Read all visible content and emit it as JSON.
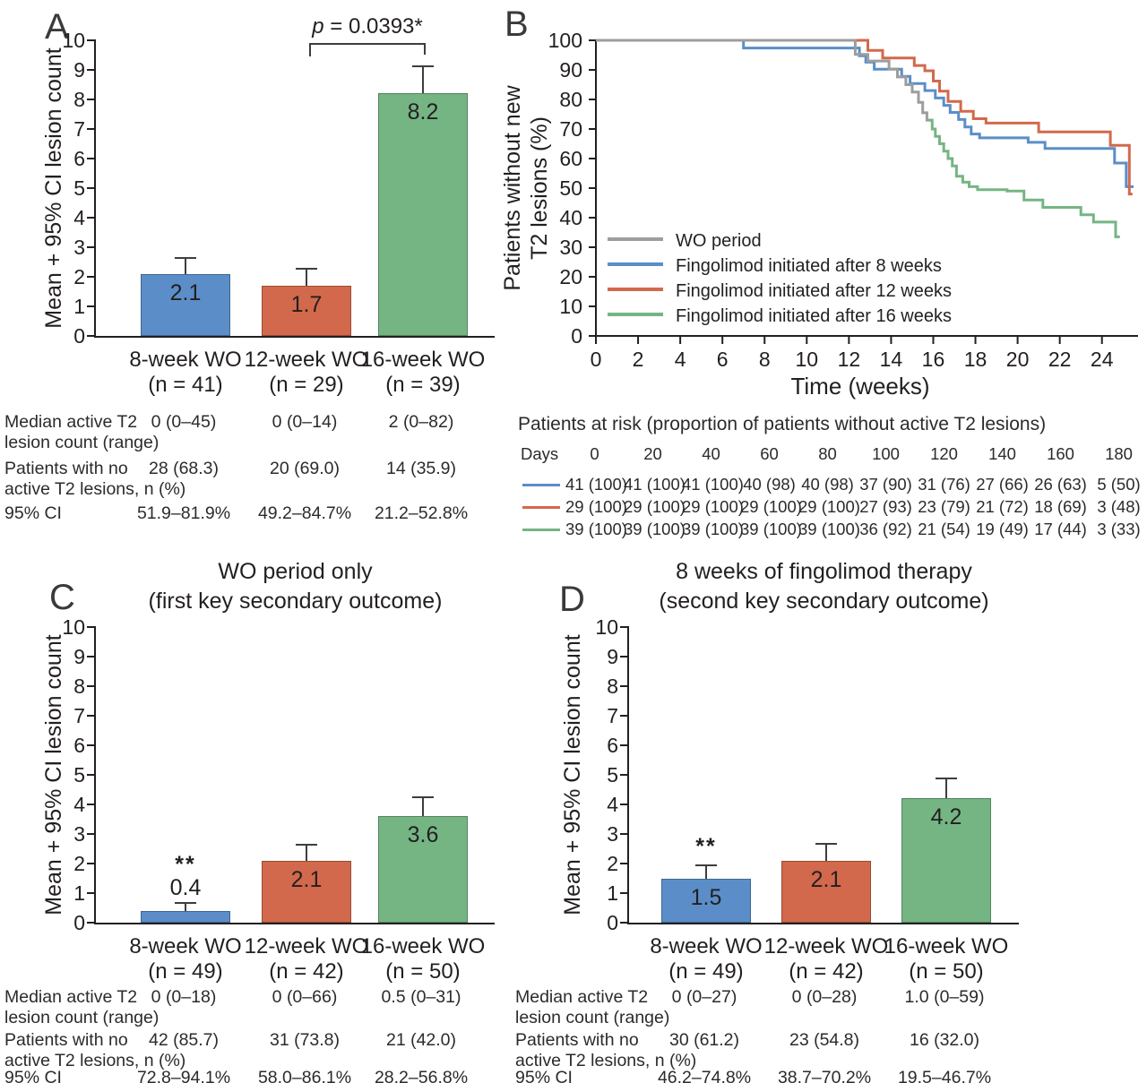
{
  "palette": {
    "blue": "#5b8ec8",
    "red": "#d2694c",
    "green": "#75b584",
    "gray": "#9c9e9d",
    "axis": "#231f20"
  },
  "chart_data": [
    {
      "id": "A",
      "type": "bar",
      "ylabel": "Mean + 95% CI lesion count",
      "ylim": [
        0,
        10
      ],
      "categories": [
        [
          "8-week WO",
          "(n = 41)"
        ],
        [
          "12-week WO",
          "(n = 29)"
        ],
        [
          "16-week WO",
          "(n = 39)"
        ]
      ],
      "values": [
        2.1,
        1.7,
        8.2
      ],
      "value_labels": [
        "2.1",
        "1.7",
        "8.2"
      ],
      "err_top": [
        2.6,
        2.25,
        9.1
      ],
      "bar_colors": [
        "blue",
        "red",
        "green"
      ],
      "sig": [
        "",
        "",
        ""
      ],
      "label_pos": [
        "in",
        "in",
        "in"
      ],
      "bracket": {
        "from": 1,
        "to": 2,
        "text_italic": "p",
        "text_rest": " = 0.0393*"
      },
      "stats_table": {
        "rows": [
          {
            "label": [
              "Median active T2",
              "lesion count (range)"
            ],
            "values": [
              "0 (0–45)",
              "0 (0–14)",
              "2 (0–82)"
            ]
          },
          {
            "label": [
              "Patients with no",
              "active T2 lesions, n (%)"
            ],
            "values": [
              "28 (68.3)",
              "20 (69.0)",
              "14 (35.9)"
            ]
          },
          {
            "label": [
              "95% CI"
            ],
            "values": [
              "51.9–81.9%",
              "49.2–84.7%",
              "21.2–52.8%"
            ]
          }
        ]
      }
    },
    {
      "id": "B",
      "type": "line",
      "subtype": "kaplan-meier",
      "ylabel_lines": [
        "Patients without new",
        "T2 lesions (%)"
      ],
      "xlabel": "Time (weeks)",
      "ylim": [
        0,
        100
      ],
      "xlim": [
        0,
        25.6
      ],
      "yticks": [
        0,
        10,
        20,
        30,
        40,
        50,
        60,
        70,
        80,
        90,
        100
      ],
      "xticks": [
        0,
        2,
        4,
        6,
        8,
        10,
        12,
        14,
        16,
        18,
        20,
        22,
        24
      ],
      "legend_position": "lower-left",
      "series": [
        {
          "name": "WO period",
          "color": "gray",
          "end": 15.95,
          "steps": [
            [
              0,
              100
            ],
            [
              12.3,
              95.2
            ],
            [
              12.9,
              93
            ],
            [
              13.9,
              90.3
            ],
            [
              14.3,
              87.6
            ],
            [
              14.7,
              85
            ],
            [
              15.0,
              82.5
            ],
            [
              15.3,
              79
            ],
            [
              15.5,
              75.5
            ],
            [
              15.7,
              73
            ]
          ]
        },
        {
          "name": "Fingolimod initiated after 8 weeks",
          "color": "blue",
          "end": 25.5,
          "steps": [
            [
              0,
              100
            ],
            [
              7,
              97.4
            ],
            [
              12.5,
              94.8
            ],
            [
              12.8,
              92.6
            ],
            [
              13.2,
              90.2
            ],
            [
              14.5,
              87.8
            ],
            [
              14.9,
              85.4
            ],
            [
              15.6,
              83
            ],
            [
              16.1,
              80.5
            ],
            [
              16.5,
              78
            ],
            [
              16.8,
              75.6
            ],
            [
              17.2,
              73.2
            ],
            [
              17.5,
              70.7
            ],
            [
              17.8,
              68.3
            ],
            [
              18.2,
              67
            ],
            [
              20.5,
              65.5
            ],
            [
              21.3,
              63.4
            ],
            [
              24.6,
              58.5
            ],
            [
              25.15,
              50.5
            ]
          ]
        },
        {
          "name": "Fingolimod initiated after 12 weeks",
          "color": "red",
          "end": 25.45,
          "steps": [
            [
              0,
              100
            ],
            [
              12.9,
              96.6
            ],
            [
              13.6,
              94
            ],
            [
              15.1,
              91.5
            ],
            [
              15.6,
              89.7
            ],
            [
              16.0,
              86.2
            ],
            [
              16.3,
              82.8
            ],
            [
              16.7,
              79.3
            ],
            [
              17.3,
              76
            ],
            [
              17.9,
              73.5
            ],
            [
              18.5,
              72
            ],
            [
              21.0,
              69
            ],
            [
              24.4,
              64.5
            ],
            [
              25.3,
              48
            ]
          ]
        },
        {
          "name": "Fingolimod initiated after 16 weeks",
          "color": "green",
          "end": 24.85,
          "steps": [
            [
              15.8,
              73
            ],
            [
              15.95,
              70
            ],
            [
              16.1,
              67.5
            ],
            [
              16.3,
              65
            ],
            [
              16.5,
              62.5
            ],
            [
              16.7,
              60
            ],
            [
              16.9,
              57.5
            ],
            [
              17.1,
              54
            ],
            [
              17.4,
              52
            ],
            [
              17.7,
              50.5
            ],
            [
              18.1,
              49.5
            ],
            [
              19.5,
              49
            ],
            [
              20.3,
              46
            ],
            [
              21.2,
              43.5
            ],
            [
              23.0,
              41
            ],
            [
              23.6,
              38.5
            ],
            [
              24.65,
              33.5
            ]
          ]
        }
      ],
      "at_risk": {
        "title": "Patients at risk (proportion of patients without active T2 lesions)",
        "days_label": "Days",
        "days": [
          "0",
          "20",
          "40",
          "60",
          "80",
          "100",
          "120",
          "140",
          "160",
          "180"
        ],
        "rows": [
          {
            "color": "blue",
            "values": [
              "41 (100)",
              "41 (100)",
              "41 (100)",
              "40 (98)",
              "40 (98)",
              "37 (90)",
              "31 (76)",
              "27 (66)",
              "26 (63)",
              "5 (50)"
            ]
          },
          {
            "color": "red",
            "values": [
              "29 (100)",
              "29 (100)",
              "29 (100)",
              "29 (100)",
              "29 (100)",
              "27 (93)",
              "23 (79)",
              "21 (72)",
              "18 (69)",
              "3 (48)"
            ]
          },
          {
            "color": "green",
            "values": [
              "39 (100)",
              "39 (100)",
              "39 (100)",
              "39 (100)",
              "39 (100)",
              "36 (92)",
              "21 (54)",
              "19 (49)",
              "17 (44)",
              "3 (33)"
            ]
          }
        ]
      }
    },
    {
      "id": "C",
      "type": "bar",
      "title_lines": [
        "WO period only",
        "(first key secondary outcome)"
      ],
      "ylabel": "Mean + 95% CI lesion count",
      "ylim": [
        0,
        10
      ],
      "categories": [
        [
          "8-week WO",
          "(n = 49)"
        ],
        [
          "12-week WO",
          "(n = 42)"
        ],
        [
          "16-week WO",
          "(n = 50)"
        ]
      ],
      "values": [
        0.4,
        2.1,
        3.6
      ],
      "value_labels": [
        "0.4",
        "2.1",
        "3.6"
      ],
      "err_top": [
        0.65,
        2.6,
        4.2
      ],
      "bar_colors": [
        "blue",
        "red",
        "green"
      ],
      "sig": [
        "**",
        "",
        ""
      ],
      "label_pos": [
        "above",
        "in",
        "in"
      ],
      "stats_table": {
        "rows": [
          {
            "label": [
              "Median active T2",
              "lesion count (range)"
            ],
            "values": [
              "0 (0–18)",
              "0 (0–66)",
              "0.5 (0–31)"
            ]
          },
          {
            "label": [
              "Patients with no",
              "active T2 lesions, n (%)"
            ],
            "values": [
              "42 (85.7)",
              "31 (73.8)",
              "21 (42.0)"
            ]
          },
          {
            "label": [
              "95% CI"
            ],
            "values": [
              "72.8–94.1%",
              "58.0–86.1%",
              "28.2–56.8%"
            ]
          }
        ]
      }
    },
    {
      "id": "D",
      "type": "bar",
      "title_lines": [
        "8 weeks of fingolimod therapy",
        "(second key secondary outcome)"
      ],
      "ylabel": "Mean + 95% CI lesion count",
      "ylim": [
        0,
        10
      ],
      "categories": [
        [
          "8-week WO",
          "(n = 49)"
        ],
        [
          "12-week WO",
          "(n = 42)"
        ],
        [
          "16-week WO",
          "(n = 50)"
        ]
      ],
      "values": [
        1.5,
        2.1,
        4.2
      ],
      "value_labels": [
        "1.5",
        "2.1",
        "4.2"
      ],
      "err_top": [
        1.9,
        2.65,
        4.85
      ],
      "bar_colors": [
        "blue",
        "red",
        "green"
      ],
      "sig": [
        "**",
        "",
        ""
      ],
      "label_pos": [
        "in",
        "in",
        "in"
      ],
      "stats_table": {
        "rows": [
          {
            "label": [
              "Median active T2",
              "lesion count (range)"
            ],
            "values": [
              "0 (0–27)",
              "0 (0–28)",
              "1.0 (0–59)"
            ]
          },
          {
            "label": [
              "Patients with no",
              "active T2 lesions, n (%)"
            ],
            "values": [
              "30 (61.2)",
              "23 (54.8)",
              "16 (32.0)"
            ]
          },
          {
            "label": [
              "95% CI"
            ],
            "values": [
              "46.2–74.8%",
              "38.7–70.2%",
              "19.5–46.7%"
            ]
          }
        ]
      }
    }
  ]
}
